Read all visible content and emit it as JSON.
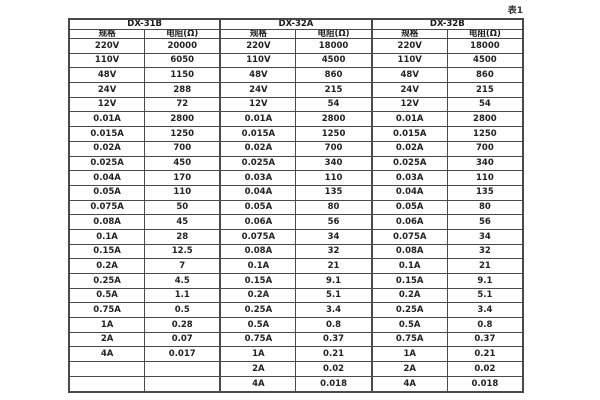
{
  "caption": "表1",
  "table": {
    "groups": [
      {
        "name": "DX-31B"
      },
      {
        "name": "DX-32A"
      },
      {
        "name": "DX-32B"
      }
    ],
    "subheaders": [
      "规格",
      "电阻(Ω)"
    ],
    "rows": [
      [
        [
          "220V",
          "20000"
        ],
        [
          "220V",
          "18000"
        ],
        [
          "220V",
          "18000"
        ]
      ],
      [
        [
          "110V",
          "6050"
        ],
        [
          "110V",
          "4500"
        ],
        [
          "110V",
          "4500"
        ]
      ],
      [
        [
          "48V",
          "1150"
        ],
        [
          "48V",
          "860"
        ],
        [
          "48V",
          "860"
        ]
      ],
      [
        [
          "24V",
          "288"
        ],
        [
          "24V",
          "215"
        ],
        [
          "24V",
          "215"
        ]
      ],
      [
        [
          "12V",
          "72"
        ],
        [
          "12V",
          "54"
        ],
        [
          "12V",
          "54"
        ]
      ],
      [
        [
          "0.01A",
          "2800"
        ],
        [
          "0.01A",
          "2800"
        ],
        [
          "0.01A",
          "2800"
        ]
      ],
      [
        [
          "0.015A",
          "1250"
        ],
        [
          "0.015A",
          "1250"
        ],
        [
          "0.015A",
          "1250"
        ]
      ],
      [
        [
          "0.02A",
          "700"
        ],
        [
          "0.02A",
          "700"
        ],
        [
          "0.02A",
          "700"
        ]
      ],
      [
        [
          "0.025A",
          "450"
        ],
        [
          "0.025A",
          "340"
        ],
        [
          "0.025A",
          "340"
        ]
      ],
      [
        [
          "0.04A",
          "170"
        ],
        [
          "0.03A",
          "110"
        ],
        [
          "0.03A",
          "110"
        ]
      ],
      [
        [
          "0.05A",
          "110"
        ],
        [
          "0.04A",
          "135"
        ],
        [
          "0.04A",
          "135"
        ]
      ],
      [
        [
          "0.075A",
          "50"
        ],
        [
          "0.05A",
          "80"
        ],
        [
          "0.05A",
          "80"
        ]
      ],
      [
        [
          "0.08A",
          "45"
        ],
        [
          "0.06A",
          "56"
        ],
        [
          "0.06A",
          "56"
        ]
      ],
      [
        [
          "0.1A",
          "28"
        ],
        [
          "0.075A",
          "34"
        ],
        [
          "0.075A",
          "34"
        ]
      ],
      [
        [
          "0.15A",
          "12.5"
        ],
        [
          "0.08A",
          "32"
        ],
        [
          "0.08A",
          "32"
        ]
      ],
      [
        [
          "0.2A",
          "7"
        ],
        [
          "0.1A",
          "21"
        ],
        [
          "0.1A",
          "21"
        ]
      ],
      [
        [
          "0.25A",
          "4.5"
        ],
        [
          "0.15A",
          "9.1"
        ],
        [
          "0.15A",
          "9.1"
        ]
      ],
      [
        [
          "0.5A",
          "1.1"
        ],
        [
          "0.2A",
          "5.1"
        ],
        [
          "0.2A",
          "5.1"
        ]
      ],
      [
        [
          "0.75A",
          "0.5"
        ],
        [
          "0.25A",
          "3.4"
        ],
        [
          "0.25A",
          "3.4"
        ]
      ],
      [
        [
          "1A",
          "0.28"
        ],
        [
          "0.5A",
          "0.8"
        ],
        [
          "0.5A",
          "0.8"
        ]
      ],
      [
        [
          "2A",
          "0.07"
        ],
        [
          "0.75A",
          "0.37"
        ],
        [
          "0.75A",
          "0.37"
        ]
      ],
      [
        [
          "4A",
          "0.017"
        ],
        [
          "1A",
          "0.21"
        ],
        [
          "1A",
          "0.21"
        ]
      ],
      [
        [
          "",
          ""
        ],
        [
          "2A",
          "0.02"
        ],
        [
          "2A",
          "0.02"
        ]
      ],
      [
        [
          "",
          ""
        ],
        [
          "4A",
          "0.018"
        ],
        [
          "4A",
          "0.018"
        ]
      ]
    ]
  }
}
